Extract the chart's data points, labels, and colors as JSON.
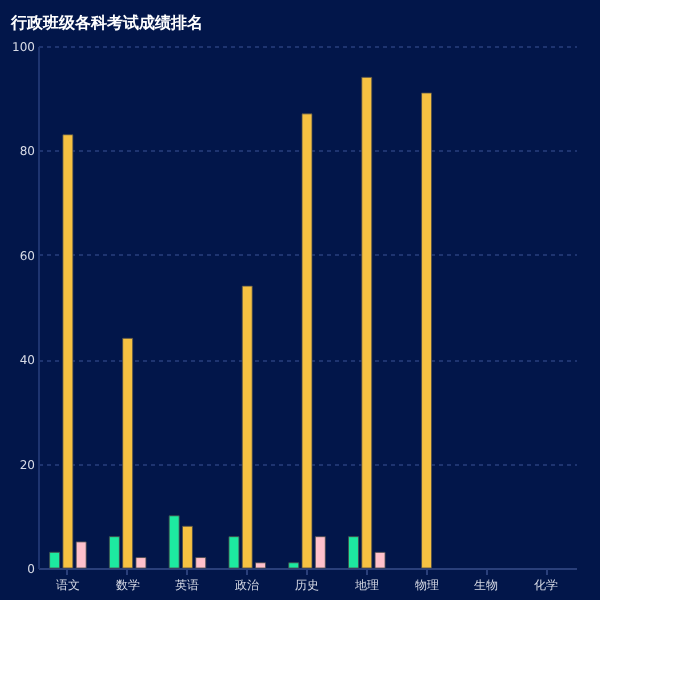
{
  "chart_data": {
    "type": "bar",
    "title": "行政班级各科考试成绩排名",
    "categories": [
      "语文",
      "数学",
      "英语",
      "政治",
      "历史",
      "地理",
      "物理",
      "生物",
      "化学"
    ],
    "series": [
      {
        "color": "#1de9a0",
        "values": [
          3,
          6,
          10,
          6,
          1,
          6,
          null,
          null,
          null
        ]
      },
      {
        "color": "#f6c142",
        "values": [
          83,
          44,
          8,
          54,
          87,
          94,
          91,
          null,
          null
        ]
      },
      {
        "color": "#ffc0cb",
        "values": [
          5,
          2,
          2,
          1,
          6,
          3,
          null,
          null,
          null
        ]
      }
    ],
    "ylim": [
      0,
      100
    ],
    "yticks": [
      0,
      20,
      40,
      60,
      80,
      100
    ],
    "grid": "y",
    "legend": false
  }
}
